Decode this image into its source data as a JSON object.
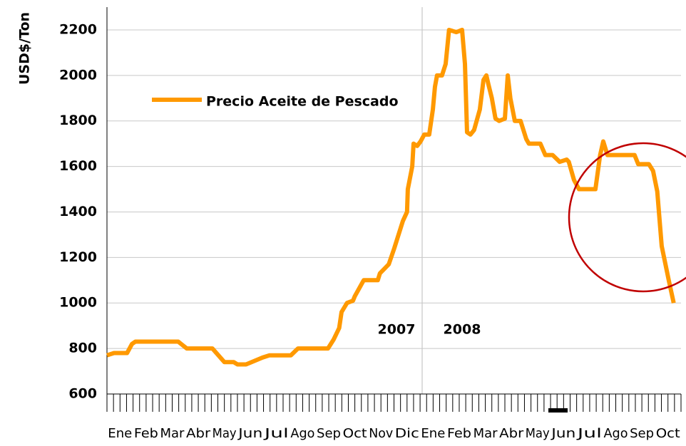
{
  "chart_data": {
    "type": "line",
    "y_label": "USD$/Ton",
    "annotations": [
      "2007",
      "2008"
    ],
    "xlim": [
      0,
      22
    ],
    "xticks": [
      {
        "value": 0.5,
        "label": "Ene"
      },
      {
        "value": 1.5,
        "label": "Feb"
      },
      {
        "value": 2.5,
        "label": "Mar"
      },
      {
        "value": 3.5,
        "label": "Abr"
      },
      {
        "value": 4.5,
        "label": "May"
      },
      {
        "value": 5.5,
        "label": "Jun"
      },
      {
        "value": 6.5,
        "label": "Jul"
      },
      {
        "value": 7.5,
        "label": "Ago"
      },
      {
        "value": 8.5,
        "label": "Sep"
      },
      {
        "value": 9.5,
        "label": "Oct"
      },
      {
        "value": 10.5,
        "label": "Nov"
      },
      {
        "value": 11.5,
        "label": "Dic"
      },
      {
        "value": 12.5,
        "label": "Ene"
      },
      {
        "value": 13.5,
        "label": "Feb"
      },
      {
        "value": 14.5,
        "label": "Mar"
      },
      {
        "value": 15.5,
        "label": "Abr"
      },
      {
        "value": 16.5,
        "label": "May"
      },
      {
        "value": 17.5,
        "label": "Jun"
      },
      {
        "value": 18.5,
        "label": "Jul"
      },
      {
        "value": 19.5,
        "label": "Ago"
      },
      {
        "value": 20.5,
        "label": "Sep"
      },
      {
        "value": 21.5,
        "label": "Oct"
      }
    ],
    "ylim": [
      600,
      2300
    ],
    "yticks": [
      600,
      800,
      1000,
      1200,
      1400,
      1600,
      1800,
      2000,
      2200
    ],
    "grid": true,
    "series": [
      {
        "name": "Precio Aceite de Pescado",
        "color": "#ff9900",
        "x": [
          0,
          0.27,
          0.77,
          0.96,
          1.09,
          2.73,
          3.06,
          4.04,
          4.5,
          4.86,
          5.0,
          5.33,
          5.96,
          6.23,
          7.05,
          7.32,
          8.47,
          8.69,
          8.9,
          8.99,
          9.2,
          9.43,
          9.5,
          9.84,
          10.38,
          10.46,
          10.8,
          11.01,
          11.34,
          11.5,
          11.53,
          11.7,
          11.75,
          11.89,
          12.02,
          12.16,
          12.35,
          12.49,
          12.57,
          12.65,
          12.84,
          12.98,
          13.11,
          13.39,
          13.61,
          13.72,
          13.8,
          13.93,
          14.07,
          14.29,
          14.43,
          14.54,
          14.62,
          14.75,
          14.89,
          15.03,
          15.25,
          15.36,
          15.46,
          15.63,
          15.85,
          16.07,
          16.17,
          16.61,
          16.8,
          17.08,
          17.35,
          17.62,
          17.7,
          17.9,
          18.09,
          18.58,
          18.72,
          18.9,
          19.02,
          19.18,
          20.22,
          20.36,
          20.77,
          20.93,
          21.09,
          21.26,
          21.53,
          21.72
        ],
        "values": [
          770,
          780,
          780,
          820,
          830,
          830,
          800,
          800,
          740,
          740,
          730,
          730,
          760,
          770,
          770,
          800,
          800,
          840,
          890,
          960,
          1000,
          1010,
          1030,
          1100,
          1100,
          1130,
          1170,
          1240,
          1360,
          1400,
          1500,
          1600,
          1700,
          1690,
          1710,
          1740,
          1740,
          1850,
          1950,
          2000,
          2000,
          2050,
          2200,
          2190,
          2200,
          2050,
          1750,
          1740,
          1760,
          1850,
          1980,
          2000,
          1960,
          1900,
          1810,
          1800,
          1810,
          2000,
          1900,
          1800,
          1800,
          1720,
          1700,
          1700,
          1650,
          1650,
          1620,
          1630,
          1620,
          1540,
          1500,
          1500,
          1500,
          1650,
          1710,
          1650,
          1650,
          1610,
          1610,
          1580,
          1490,
          1250,
          1100,
          1000
        ]
      }
    ]
  }
}
